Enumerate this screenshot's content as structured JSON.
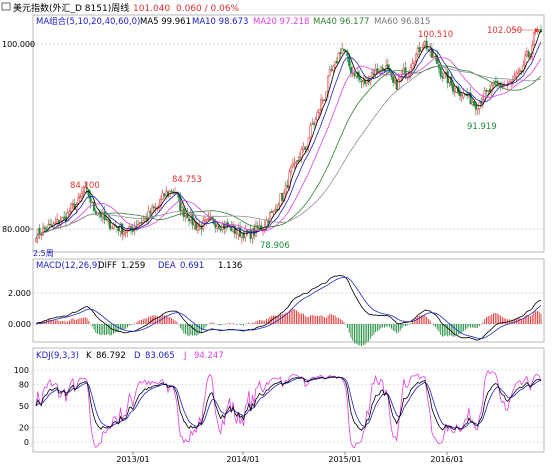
{
  "header": {
    "title": "美元指数(外汇_D 8151)周线",
    "price": "101.040",
    "change": "0.060 / 0.06%",
    "ma_group": "MA组合(5,10,20,40,60,0)",
    "ma5": "MA5 99.961",
    "ma10": "MA10 98.673",
    "ma20": "MA20 97.218",
    "ma40": "MA40 96.177",
    "ma60": "MA60 96.815"
  },
  "main_axis": {
    "top_label": "100.000",
    "bottom_label": "80.000"
  },
  "main_annotations": {
    "a1": "84.100",
    "a2": "84.753",
    "a3": "78.906",
    "a4": "100.510",
    "a5": "91.919",
    "a6": "102.050"
  },
  "main_marker": "2.5周",
  "macd": {
    "label": "MACD(12,26,9)",
    "diff_label": "DIFF",
    "diff": "1.259",
    "dea_label": "DEA",
    "dea": "0.691",
    "macd": "1.136",
    "axis_top": "2.000",
    "axis_zero": "0.000"
  },
  "kdj": {
    "label": "KDJ(9,3,3)",
    "k_label": "K",
    "k": "86.792",
    "d_label": "D",
    "d": "83.065",
    "j_label": "J",
    "j": "94.247",
    "ticks": [
      "100",
      "80",
      "50",
      "20",
      "0"
    ]
  },
  "time_axis": [
    "2013/01",
    "2014/01",
    "2015/01",
    "2016/01"
  ],
  "colors": {
    "up": "#e03030",
    "down": "#1a8a3a",
    "ma5": "#000000",
    "ma10": "#2020c0",
    "ma20": "#e040e0",
    "ma40": "#308030",
    "ma60": "#909090",
    "macd_dea": "#2030c0"
  },
  "chart_data": [
    {
      "type": "candlestick",
      "title": "美元指数(外汇_D 8151)周线",
      "x_range": [
        "2012/03",
        "2016/12"
      ],
      "ylim": [
        77,
        104
      ],
      "series": [
        {
          "name": "MA5",
          "last": 99.961
        },
        {
          "name": "MA10",
          "last": 98.673
        },
        {
          "name": "MA20",
          "last": 97.218
        },
        {
          "name": "MA40",
          "last": 96.177
        },
        {
          "name": "MA60",
          "last": 96.815
        }
      ],
      "price_anchors": [
        {
          "x": 0,
          "y": 79.5
        },
        {
          "x": 8,
          "y": 80.2
        },
        {
          "x": 15,
          "y": 81.0
        },
        {
          "x": 22,
          "y": 82.5
        },
        {
          "x": 28,
          "y": 84.1
        },
        {
          "x": 34,
          "y": 82.0
        },
        {
          "x": 42,
          "y": 80.5
        },
        {
          "x": 52,
          "y": 79.8
        },
        {
          "x": 60,
          "y": 80.8
        },
        {
          "x": 68,
          "y": 82.2
        },
        {
          "x": 74,
          "y": 83.8
        },
        {
          "x": 78,
          "y": 84.2
        },
        {
          "x": 84,
          "y": 81.8
        },
        {
          "x": 92,
          "y": 80.3
        },
        {
          "x": 100,
          "y": 80.8
        },
        {
          "x": 108,
          "y": 80.3
        },
        {
          "x": 116,
          "y": 79.6
        },
        {
          "x": 122,
          "y": 79.5
        },
        {
          "x": 128,
          "y": 80.2
        },
        {
          "x": 134,
          "y": 81.6
        },
        {
          "x": 140,
          "y": 83.5
        },
        {
          "x": 146,
          "y": 86.5
        },
        {
          "x": 152,
          "y": 88.5
        },
        {
          "x": 158,
          "y": 91.5
        },
        {
          "x": 163,
          "y": 94.0
        },
        {
          "x": 168,
          "y": 97.0
        },
        {
          "x": 174,
          "y": 99.5
        },
        {
          "x": 180,
          "y": 97.0
        },
        {
          "x": 186,
          "y": 95.8
        },
        {
          "x": 192,
          "y": 97.0
        },
        {
          "x": 198,
          "y": 97.5
        },
        {
          "x": 204,
          "y": 95.5
        },
        {
          "x": 210,
          "y": 97.0
        },
        {
          "x": 216,
          "y": 98.8
        },
        {
          "x": 220,
          "y": 100.2
        },
        {
          "x": 226,
          "y": 98.5
        },
        {
          "x": 232,
          "y": 96.5
        },
        {
          "x": 238,
          "y": 95.2
        },
        {
          "x": 244,
          "y": 94.5
        },
        {
          "x": 250,
          "y": 93.5
        },
        {
          "x": 256,
          "y": 94.6
        },
        {
          "x": 262,
          "y": 95.6
        },
        {
          "x": 268,
          "y": 95.6
        },
        {
          "x": 274,
          "y": 96.5
        },
        {
          "x": 280,
          "y": 98.8
        },
        {
          "x": 284,
          "y": 101.2
        },
        {
          "x": 287,
          "y": 101.0
        }
      ],
      "extremes": [
        {
          "label": "84.100",
          "value": 84.1
        },
        {
          "label": "84.753",
          "value": 84.753
        },
        {
          "label": "78.906",
          "value": 78.906
        },
        {
          "label": "100.510",
          "value": 100.51
        },
        {
          "label": "91.919",
          "value": 91.919
        },
        {
          "label": "102.050",
          "value": 102.05
        }
      ]
    },
    {
      "type": "line",
      "title": "MACD(12,26,9)",
      "ylim": [
        -2.0,
        3.0
      ],
      "series": [
        {
          "name": "DIFF",
          "last": 1.259
        },
        {
          "name": "DEA",
          "last": 0.691
        },
        {
          "name": "MACD",
          "last": 1.136
        }
      ]
    },
    {
      "type": "line",
      "title": "KDJ(9,3,3)",
      "ylim": [
        -10,
        110
      ],
      "series": [
        {
          "name": "K",
          "last": 86.792
        },
        {
          "name": "D",
          "last": 83.065
        },
        {
          "name": "J",
          "last": 94.247
        }
      ]
    }
  ]
}
